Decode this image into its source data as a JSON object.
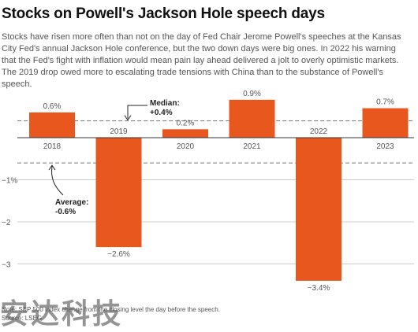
{
  "title": "Stocks on Powell's Jackson Hole speech days",
  "subtitle": "Stocks have risen more often than not on the day of Fed Chair Jerome Powell's speeches at the Kansas City Fed's annual Jackson Hole conference, but the two down days were big ones. In 2022 his warning that the Fed's fight with inflation would mean pain lay ahead delivered a jolt to overly optimistic markets. The 2019 drop owed more to escalating trade tensions with China than to the substance of Powell's speech.",
  "note": "Note: S&P 500 index change from the closing level the day before the speech.",
  "source": "Source: LSEG",
  "watermark": "安达科技",
  "colors": {
    "bar": "#e8571d",
    "reference_line": "#777777",
    "zero_line": "#333333",
    "grid": "#cccccc"
  },
  "chart_data": {
    "type": "bar",
    "categories": [
      "2018",
      "2019",
      "2020",
      "2021",
      "2022",
      "2023"
    ],
    "values": [
      0.6,
      -2.6,
      0.2,
      0.9,
      -3.4,
      0.7
    ],
    "data_labels": [
      "0.6%",
      "−2.6%",
      "0.2%",
      "0.9%",
      "−3.4%",
      "0.7%"
    ],
    "y_ticks": [
      {
        "value": -1,
        "label": "−1%"
      },
      {
        "value": -2,
        "label": "−2"
      },
      {
        "value": -3,
        "label": "−3"
      }
    ],
    "ylim": [
      -3.4,
      1.0
    ],
    "grid": true,
    "reference_lines": [
      {
        "value": 0.4,
        "label_line1": "Median:",
        "label_line2": "+0.4%"
      },
      {
        "value": -0.6,
        "label_line1": "Average:",
        "label_line2": "-0.6%"
      }
    ]
  }
}
